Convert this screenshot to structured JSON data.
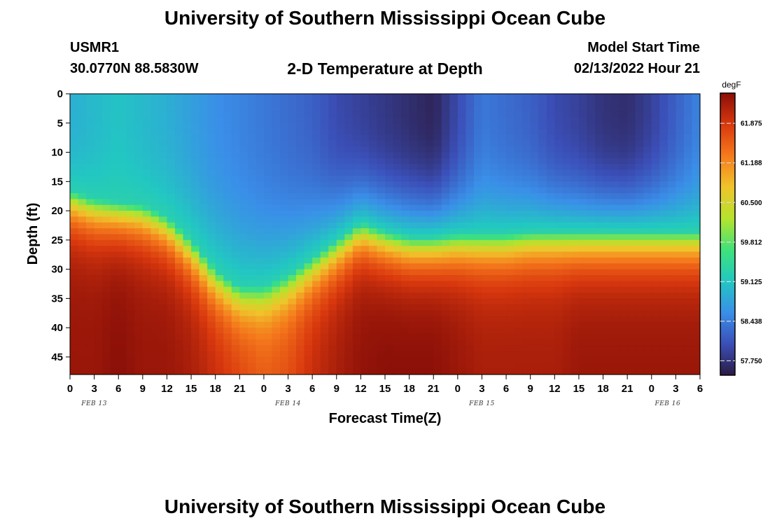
{
  "header": {
    "title_top": "University of Southern Mississippi Ocean Cube",
    "station": "USMR1",
    "coords": "30.0770N  88.5830W",
    "chart_title": "2-D Temperature at Depth",
    "model_label": "Model Start Time",
    "model_time": "02/13/2022 Hour 21",
    "title_bottom": "University of Southern Mississippi Ocean Cube"
  },
  "colors": {
    "colormap": [
      "#2b1b44",
      "#3b4fb8",
      "#3a8fe8",
      "#22c7c2",
      "#3fe27a",
      "#b5e32d",
      "#f0c42b",
      "#f57a1c",
      "#d9380e",
      "#8a0f08"
    ]
  },
  "chart_data": {
    "type": "heatmap",
    "xlabel": "Forecast Time(Z)",
    "ylabel": "Depth (ft)",
    "x_tick_labels": [
      "0",
      "3",
      "6",
      "9",
      "12",
      "15",
      "18",
      "21",
      "0",
      "3",
      "6",
      "9",
      "12",
      "15",
      "18",
      "21",
      "0",
      "3",
      "6",
      "9",
      "12",
      "15",
      "18",
      "21",
      "0",
      "3",
      "6"
    ],
    "date_labels": [
      {
        "text": "FEB 13",
        "hour": 3
      },
      {
        "text": "FEB 14",
        "hour": 27
      },
      {
        "text": "FEB 15",
        "hour": 51
      },
      {
        "text": "FEB 16",
        "hour": 74
      }
    ],
    "x_range_hours": [
      0,
      78
    ],
    "y_ticks": [
      0,
      5,
      10,
      15,
      20,
      25,
      30,
      35,
      40,
      45
    ],
    "ylim": [
      0,
      48
    ],
    "colorbar": {
      "unit": "degF",
      "min": 57.5,
      "max": 62.4,
      "ticks": [
        "61.875",
        "61.188",
        "60.500",
        "59.812",
        "59.125",
        "58.438",
        "57.750"
      ]
    },
    "thermocline_depth_ft": {
      "hours": [
        0,
        3,
        6,
        9,
        12,
        15,
        18,
        21,
        24,
        27,
        30,
        33,
        36,
        39,
        42,
        45,
        48,
        51,
        54,
        57,
        60,
        63,
        66,
        69,
        72,
        75,
        78
      ],
      "depth": [
        16.5,
        18,
        18.5,
        19,
        21,
        25,
        30,
        33,
        33,
        31,
        28,
        25,
        22,
        23.5,
        24.5,
        24.5,
        24,
        24,
        24,
        23.5,
        23.5,
        23.5,
        23.5,
        23.5,
        23.5,
        23.5,
        23.5
      ]
    },
    "surface_temp_degF": {
      "hours": [
        0,
        3,
        6,
        9,
        12,
        15,
        18,
        21,
        24,
        27,
        30,
        33,
        36,
        39,
        42,
        45,
        48,
        51,
        54,
        57,
        60,
        63,
        66,
        69,
        72,
        75,
        78
      ],
      "values": [
        58.9,
        59.0,
        59.1,
        59.0,
        58.9,
        58.75,
        58.6,
        58.5,
        58.4,
        58.3,
        58.2,
        58.0,
        57.9,
        57.8,
        57.7,
        57.6,
        58.0,
        58.4,
        58.3,
        58.2,
        58.0,
        57.9,
        57.75,
        57.7,
        57.9,
        58.2,
        58.5
      ]
    },
    "bottom_temp_degF": {
      "hours": [
        0,
        3,
        6,
        9,
        12,
        15,
        18,
        21,
        24,
        27,
        30,
        33,
        36,
        39,
        42,
        45,
        48,
        51,
        54,
        57,
        60,
        63,
        66,
        69,
        72,
        75,
        78
      ],
      "values": [
        62.3,
        62.3,
        62.4,
        62.3,
        62.3,
        62.2,
        62.0,
        61.8,
        61.6,
        61.7,
        62.0,
        62.2,
        62.35,
        62.4,
        62.4,
        62.4,
        62.3,
        62.2,
        62.2,
        62.2,
        62.2,
        62.3,
        62.3,
        62.3,
        62.3,
        62.3,
        62.3
      ]
    }
  }
}
